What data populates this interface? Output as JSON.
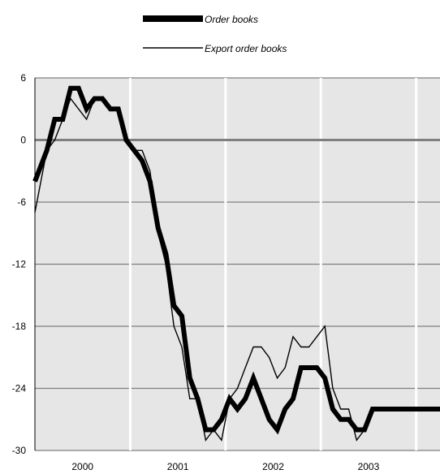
{
  "chart_data": {
    "type": "line",
    "title": "",
    "xlabel": "",
    "ylabel": "",
    "ylim": [
      -30,
      6
    ],
    "y_ticks": [
      6,
      0,
      -6,
      -12,
      -18,
      -24,
      -30
    ],
    "x_range": [
      1999.5,
      2003.75
    ],
    "year_labels": [
      {
        "label": "2000",
        "center": 2000.0
      },
      {
        "label": "2001",
        "center": 2001.0
      },
      {
        "label": "2002",
        "center": 2002.0
      },
      {
        "label": "2003",
        "center": 2003.0
      }
    ],
    "year_dividers": [
      2000.5,
      2001.5,
      2002.5,
      2003.5
    ],
    "zero_line": true,
    "grid": "horizontal",
    "background_color": "#e6e6e6",
    "legend_position": "top-center",
    "series": [
      {
        "name": "Order books",
        "color": "#000000",
        "style": "thick",
        "x": [
          1999.5,
          1999.625,
          1999.708,
          1999.792,
          1999.875,
          1999.958,
          2000.042,
          2000.125,
          2000.208,
          2000.292,
          2000.375,
          2000.458,
          2000.542,
          2000.625,
          2000.708,
          2000.792,
          2000.875,
          2000.958,
          2001.042,
          2001.125,
          2001.208,
          2001.292,
          2001.375,
          2001.458,
          2001.542,
          2001.625,
          2001.708,
          2001.792,
          2001.875,
          2001.958,
          2002.042,
          2002.125,
          2002.208,
          2002.292,
          2002.375,
          2002.458,
          2002.542,
          2002.625,
          2002.708,
          2002.792,
          2002.875,
          2002.958,
          2003.042,
          2003.125,
          2003.208,
          2003.292,
          2003.375,
          2003.458,
          2003.542,
          2003.625,
          2003.75
        ],
        "values": [
          -4,
          -1,
          2,
          2,
          5,
          5,
          3,
          4,
          4,
          3,
          3,
          0,
          -1,
          -2,
          -4,
          -8.5,
          -11,
          -16,
          -17,
          -23,
          -25,
          -28,
          -28,
          -27,
          -25,
          -26,
          -25,
          -23,
          -25,
          -27,
          -28,
          -26,
          -25,
          -22,
          -22,
          -22,
          -23,
          -26,
          -27,
          -27,
          -28,
          -28,
          -26,
          -26,
          -26,
          -26,
          -26,
          -26,
          -26,
          -26,
          -26
        ]
      },
      {
        "name": "Export order books",
        "color": "#000000",
        "style": "thin",
        "x": [
          1999.5,
          1999.625,
          1999.708,
          1999.792,
          1999.875,
          1999.958,
          2000.042,
          2000.125,
          2000.208,
          2000.292,
          2000.375,
          2000.458,
          2000.542,
          2000.625,
          2000.708,
          2000.792,
          2000.875,
          2000.958,
          2001.042,
          2001.125,
          2001.208,
          2001.292,
          2001.375,
          2001.458,
          2001.542,
          2001.625,
          2001.708,
          2001.792,
          2001.875,
          2001.958,
          2002.042,
          2002.125,
          2002.208,
          2002.292,
          2002.375,
          2002.458,
          2002.542,
          2002.625,
          2002.708,
          2002.792,
          2002.875,
          2002.958
        ],
        "values": [
          -7,
          -1,
          0,
          2,
          4,
          3,
          2,
          4,
          4,
          3,
          3,
          0,
          -1,
          -1,
          -3,
          -9,
          -12,
          -18,
          -20,
          -25,
          -25,
          -29,
          -28,
          -29,
          -25,
          -24,
          -22,
          -20,
          -20,
          -21,
          -23,
          -22,
          -19,
          -20,
          -20,
          -19,
          -18,
          -24,
          -26,
          -26,
          -29,
          -28
        ]
      }
    ]
  }
}
